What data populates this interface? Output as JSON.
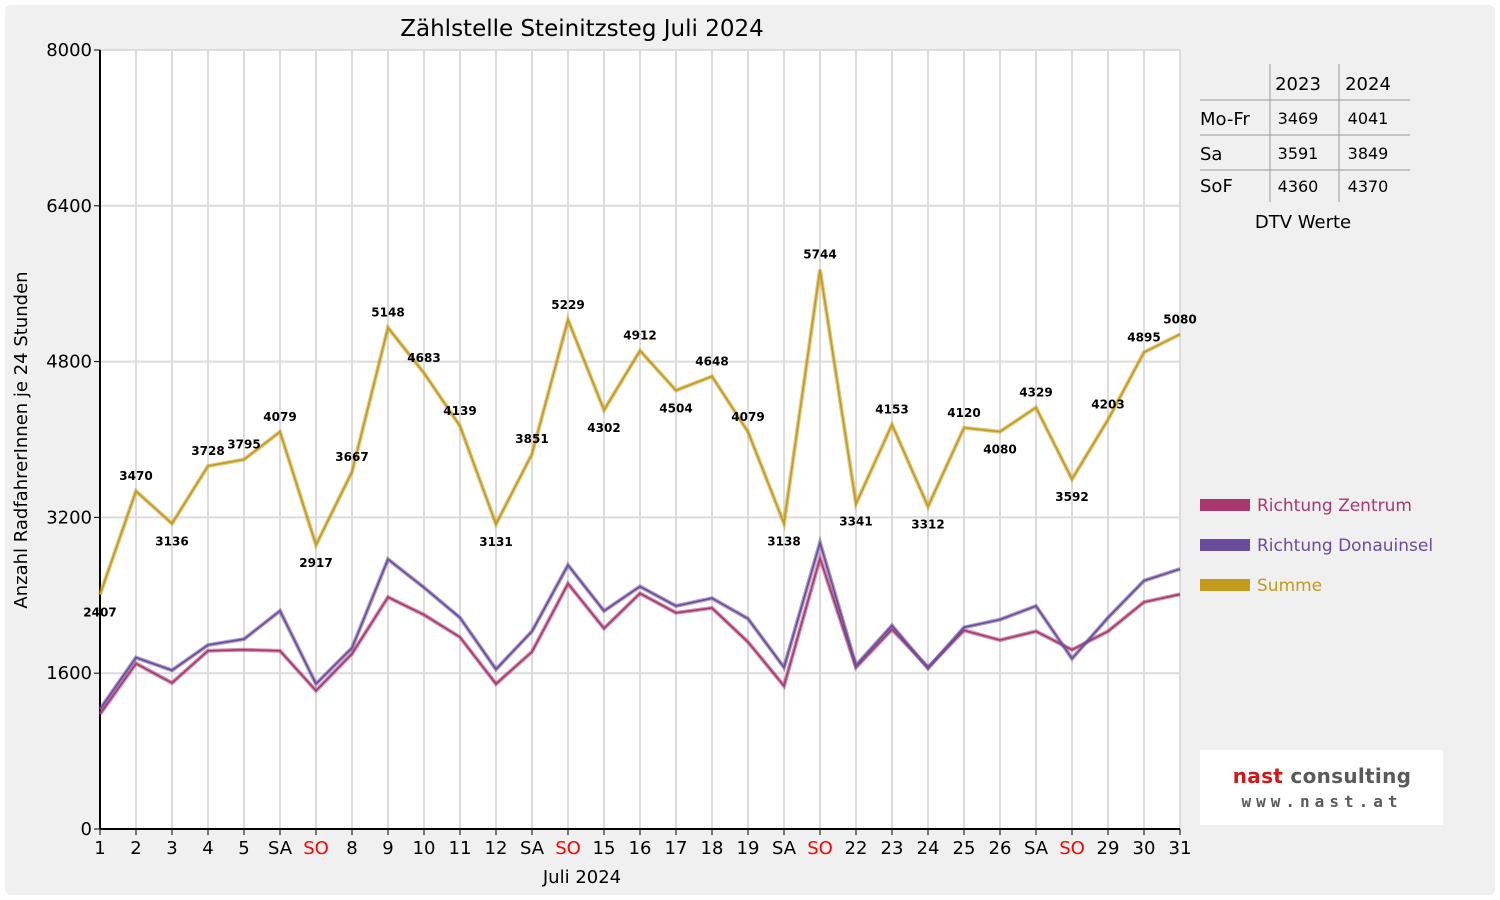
{
  "chart_data": {
    "type": "line",
    "title": "Zählstelle Steinitzsteg Juli 2024",
    "xlabel": "Juli 2024",
    "ylabel": "Anzahl RadfahrerInnen je 24 Stunden",
    "ylim": [
      0,
      8000
    ],
    "yticks": [
      0,
      1600,
      3200,
      4800,
      6400,
      8000
    ],
    "grid": true,
    "legend_position": "right",
    "categories": [
      "1",
      "2",
      "3",
      "4",
      "5",
      "SA",
      "SO",
      "8",
      "9",
      "10",
      "11",
      "12",
      "SA",
      "SO",
      "15",
      "16",
      "17",
      "18",
      "19",
      "SA",
      "SO",
      "22",
      "23",
      "24",
      "25",
      "26",
      "SA",
      "SO",
      "29",
      "30",
      "31"
    ],
    "sunday_indices": [
      6,
      13,
      20,
      27
    ],
    "sunday_color": "#ff0000",
    "series": [
      {
        "name": "Richtung Zentrum",
        "color": "#a8386e",
        "values": [
          1180,
          1700,
          1500,
          1830,
          1840,
          1830,
          1420,
          1800,
          2380,
          2200,
          1970,
          1490,
          1820,
          2520,
          2060,
          2420,
          2220,
          2270,
          1920,
          1470,
          2780,
          1660,
          2050,
          1660,
          2040,
          1940,
          2030,
          1840,
          2030,
          2330,
          2410
        ],
        "show_labels": false
      },
      {
        "name": "Richtung Donauinsel",
        "color": "#6a4c9c",
        "values": [
          1230,
          1760,
          1630,
          1890,
          1950,
          2240,
          1490,
          1860,
          2770,
          2480,
          2170,
          1640,
          2030,
          2710,
          2240,
          2490,
          2290,
          2370,
          2160,
          1660,
          2940,
          1680,
          2090,
          1650,
          2070,
          2150,
          2290,
          1750,
          2170,
          2550,
          2670
        ],
        "show_labels": false
      },
      {
        "name": "Summe",
        "color": "#c49a1b",
        "values": [
          2407,
          3470,
          3136,
          3728,
          3795,
          4079,
          2917,
          3667,
          5148,
          4683,
          4139,
          3131,
          3851,
          5229,
          4302,
          4912,
          4504,
          4648,
          4079,
          3138,
          5744,
          3341,
          4153,
          3312,
          4120,
          4080,
          4329,
          3592,
          4203,
          4895,
          5080
        ],
        "show_labels": true
      }
    ]
  },
  "dtv_table": {
    "headers": [
      "",
      "2023",
      "2024"
    ],
    "rows": [
      {
        "label": "Mo-Fr",
        "v2023": "3469",
        "v2024": "4041"
      },
      {
        "label": "Sa",
        "v2023": "3591",
        "v2024": "3849"
      },
      {
        "label": "SoF",
        "v2023": "4360",
        "v2024": "4370"
      }
    ],
    "caption": "DTV Werte"
  },
  "logo": {
    "name_accent": "nast",
    "name_rest": " consulting",
    "url": "www.nast.at"
  }
}
